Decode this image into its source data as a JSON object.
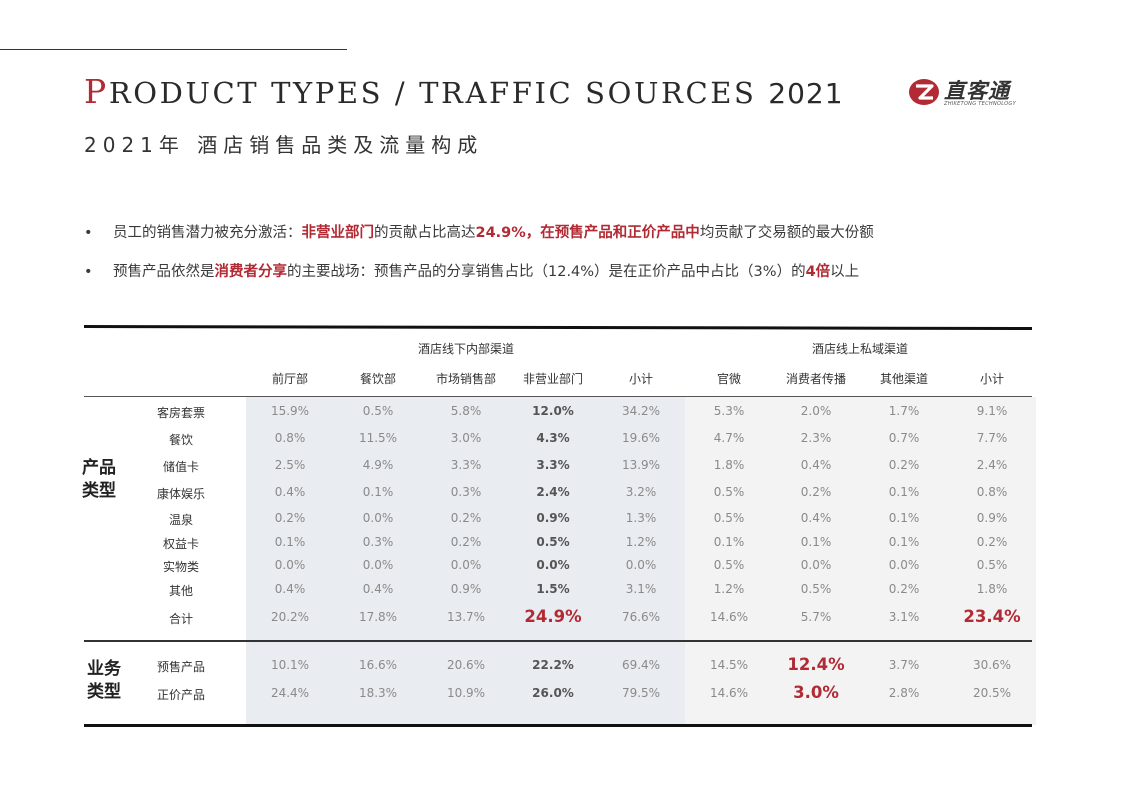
{
  "title": {
    "cap": "P",
    "rest": "RODUCT TYPES / TRAFFIC SOURCES ",
    "year": "2021",
    "cn": "2021年 酒店销售品类及流量构成"
  },
  "logo": {
    "name": "直客通",
    "sub": "ZHIKETONG TECHNOLOGY",
    "brand_color": "#b22a34"
  },
  "bullets": [
    {
      "marker": "•",
      "segments": [
        {
          "text": "员工的销售潜力被充分激活：",
          "hl": false
        },
        {
          "text": "非营业部门",
          "hl": true
        },
        {
          "text": "的贡献占比高达",
          "hl": false
        },
        {
          "text": "24.9%，在预售产品和正价产品中",
          "hl": true
        },
        {
          "text": "均贡献了交易额的最大份额",
          "hl": false
        }
      ]
    },
    {
      "marker": "•",
      "segments": [
        {
          "text": "预售产品依然是",
          "hl": false
        },
        {
          "text": "消费者分享",
          "hl": true
        },
        {
          "text": "的主要战场：预售产品的分享销售占比（12.4%）是在正价产品中占比（3%）的",
          "hl": false
        },
        {
          "text": "4倍",
          "hl": true
        },
        {
          "text": "以上",
          "hl": false
        }
      ]
    }
  ],
  "table": {
    "groups": [
      "酒店线下内部渠道",
      "酒店线上私域渠道"
    ],
    "columns": [
      "前厅部",
      "餐饮部",
      "市场销售部",
      "非营业部门",
      "小计",
      "官微",
      "消费者传播",
      "其他渠道",
      "小计"
    ],
    "sections": [
      {
        "label": "产品\n类型",
        "rows": [
          {
            "label": "客房套票",
            "values": [
              "15.9%",
              "0.5%",
              "5.8%",
              "12.0%",
              "34.2%",
              "5.3%",
              "2.0%",
              "1.7%",
              "9.1%"
            ]
          },
          {
            "label": "餐饮",
            "values": [
              "0.8%",
              "11.5%",
              "3.0%",
              "4.3%",
              "19.6%",
              "4.7%",
              "2.3%",
              "0.7%",
              "7.7%"
            ]
          },
          {
            "label": "储值卡",
            "values": [
              "2.5%",
              "4.9%",
              "3.3%",
              "3.3%",
              "13.9%",
              "1.8%",
              "0.4%",
              "0.2%",
              "2.4%"
            ]
          },
          {
            "label": "康体娱乐",
            "values": [
              "0.4%",
              "0.1%",
              "0.3%",
              "2.4%",
              "3.2%",
              "0.5%",
              "0.2%",
              "0.1%",
              "0.8%"
            ]
          },
          {
            "label": "温泉",
            "values": [
              "0.2%",
              "0.0%",
              "0.2%",
              "0.9%",
              "1.3%",
              "0.5%",
              "0.4%",
              "0.1%",
              "0.9%"
            ]
          },
          {
            "label": "权益卡",
            "values": [
              "0.1%",
              "0.3%",
              "0.2%",
              "0.5%",
              "1.2%",
              "0.1%",
              "0.1%",
              "0.1%",
              "0.2%"
            ]
          },
          {
            "label": "实物类",
            "values": [
              "0.0%",
              "0.0%",
              "0.0%",
              "0.0%",
              "0.0%",
              "0.5%",
              "0.0%",
              "0.0%",
              "0.5%"
            ]
          },
          {
            "label": "其他",
            "values": [
              "0.4%",
              "0.4%",
              "0.9%",
              "1.5%",
              "3.1%",
              "1.2%",
              "0.5%",
              "0.2%",
              "1.8%"
            ]
          },
          {
            "label": "合计",
            "values": [
              "20.2%",
              "17.8%",
              "13.7%",
              "24.9%",
              "76.6%",
              "14.6%",
              "5.7%",
              "3.1%",
              "23.4%"
            ]
          }
        ]
      },
      {
        "label": "业务\n类型",
        "rows": [
          {
            "label": "预售产品",
            "values": [
              "10.1%",
              "16.6%",
              "20.6%",
              "22.2%",
              "69.4%",
              "14.5%",
              "12.4%",
              "3.7%",
              "30.6%"
            ]
          },
          {
            "label": "正价产品",
            "values": [
              "24.4%",
              "18.3%",
              "10.9%",
              "26.0%",
              "79.5%",
              "14.6%",
              "3.0%",
              "2.8%",
              "20.5%"
            ]
          }
        ]
      }
    ],
    "emphasis_color": "#b22a34"
  }
}
